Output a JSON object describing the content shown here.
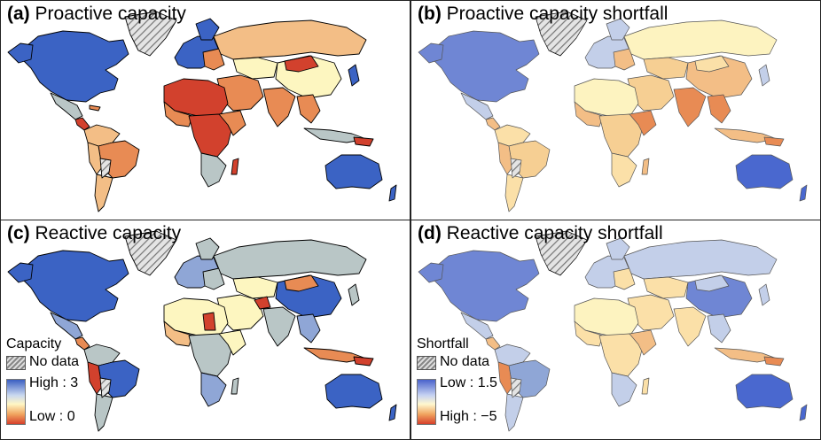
{
  "panels": [
    {
      "tag": "(a)",
      "title": "Proactive capacity"
    },
    {
      "tag": "(b)",
      "title": "Proactive capacity shortfall"
    },
    {
      "tag": "(c)",
      "title": "Reactive capacity"
    },
    {
      "tag": "(d)",
      "title": "Reactive capacity shortfall"
    }
  ],
  "legend_c": {
    "title": "Capacity",
    "nodata": "No data",
    "high": "High : 3",
    "low": "Low : 0"
  },
  "legend_d": {
    "title": "Shortfall",
    "nodata": "No data",
    "low": "Low : 1.5",
    "high": "High : −5"
  },
  "colors": {
    "blue": "#3b63c4",
    "light_blue": "#c3cfe9",
    "grey": "#b9c6c6",
    "cream": "#fdf6c0",
    "light_orange": "#f3be86",
    "orange": "#e88b54",
    "red": "#d2412d",
    "outline": "#000000",
    "hatch": "#9a9a9a"
  }
}
